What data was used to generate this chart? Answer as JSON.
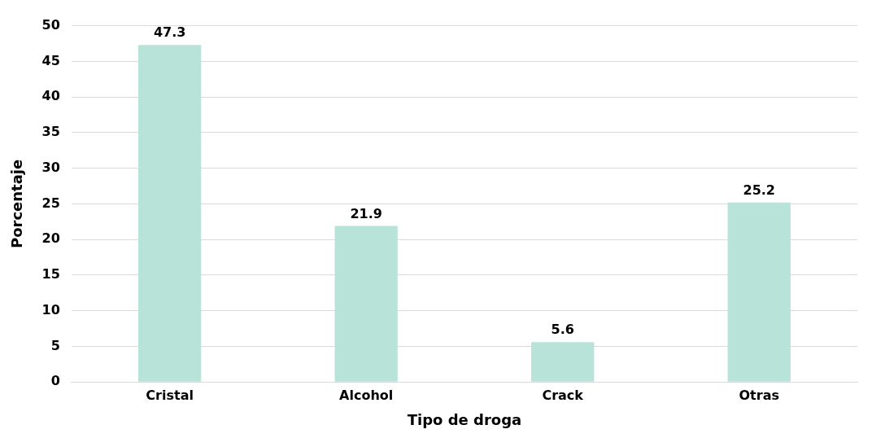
{
  "chart_data": {
    "type": "bar",
    "xlabel": "Tipo de droga",
    "ylabel": "Porcentaje",
    "categories": [
      "Cristal",
      "Alcohol",
      "Crack",
      "Otras"
    ],
    "values": [
      47.3,
      21.9,
      5.6,
      25.2
    ],
    "color": "#b8e3d9",
    "ylim": [
      0,
      50
    ],
    "yticks": [
      0,
      5,
      10,
      15,
      20,
      25,
      30,
      35,
      40,
      45,
      50
    ],
    "grid": "y",
    "data_labels": true
  }
}
